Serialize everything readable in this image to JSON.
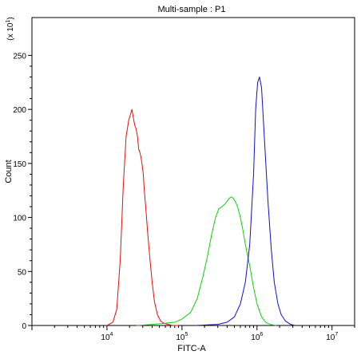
{
  "chart_data": {
    "type": "line",
    "title": "Multi-sample : P1",
    "xlabel": "FITC-A",
    "ylabel": "Count",
    "y_multiplier": "(x 10",
    "y_multiplier_exp": "1",
    "y_multiplier_close": ")",
    "x_scale": "log",
    "xlim": [
      1000,
      20000000
    ],
    "ylim": [
      0,
      285
    ],
    "grid": false,
    "legend": "none",
    "y_ticks": [
      0,
      50,
      100,
      150,
      200,
      250
    ],
    "y_tick_labels": [
      "0",
      "50",
      "100",
      "150",
      "200",
      "250"
    ],
    "x_ticks": [
      10000,
      100000,
      1000000,
      10000000
    ],
    "x_tick_base": "10",
    "x_tick_exps": [
      "4",
      "5",
      "6",
      "7"
    ],
    "series": [
      {
        "color": "#e01010",
        "x": [
          10000,
          12000,
          13500,
          15000,
          16500,
          18000,
          19500,
          20500,
          21500,
          22500,
          23500,
          24500,
          25500,
          26500,
          27500,
          28500,
          29500,
          30500,
          31500,
          33000,
          35000,
          37000,
          40000,
          43000,
          47000,
          52000,
          58000,
          65000,
          75000,
          90000
        ],
        "y": [
          0,
          3,
          15,
          60,
          130,
          175,
          190,
          195,
          200,
          192,
          185,
          182,
          175,
          163,
          160,
          155,
          148,
          140,
          125,
          108,
          85,
          65,
          40,
          22,
          10,
          4,
          2,
          1,
          0,
          0
        ]
      },
      {
        "color": "#10d010",
        "x": [
          25000,
          40000,
          60000,
          80000,
          100000,
          130000,
          160000,
          190000,
          220000,
          250000,
          280000,
          310000,
          340000,
          370000,
          400000,
          430000,
          460000,
          490000,
          520000,
          550000,
          600000,
          650000,
          700000,
          800000,
          900000,
          1000000,
          1150000,
          1300000,
          1500000,
          1800000
        ],
        "y": [
          0,
          1,
          2,
          3,
          6,
          12,
          25,
          45,
          65,
          85,
          100,
          108,
          110,
          112,
          115,
          118,
          119,
          117,
          114,
          110,
          100,
          88,
          75,
          55,
          35,
          20,
          8,
          3,
          1,
          0
        ]
      },
      {
        "color": "#1010c0",
        "x": [
          150000,
          300000,
          400000,
          500000,
          600000,
          700000,
          800000,
          900000,
          960000,
          1020000,
          1080000,
          1150000,
          1250000,
          1400000,
          1550000,
          1700000,
          1900000,
          2100000,
          2400000,
          2800000,
          3200000
        ],
        "y": [
          0,
          1,
          3,
          8,
          20,
          40,
          75,
          140,
          200,
          225,
          230,
          220,
          175,
          115,
          70,
          40,
          20,
          10,
          4,
          1,
          0
        ]
      }
    ]
  }
}
